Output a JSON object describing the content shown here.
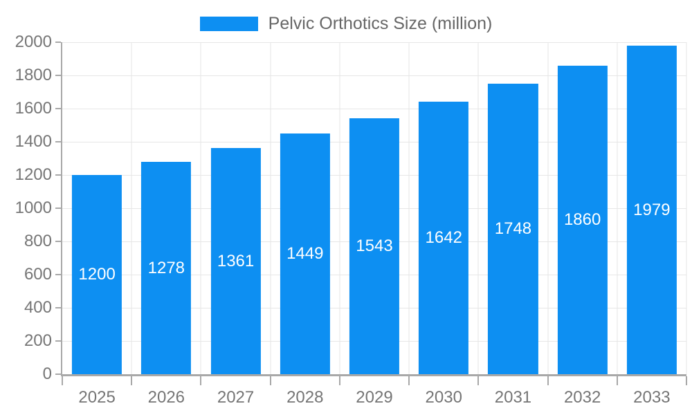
{
  "legend": {
    "label": "Pelvic Orthotics Size (million)"
  },
  "chart_data": {
    "type": "bar",
    "title": "Pelvic Orthotics Size (million)",
    "categories": [
      "2025",
      "2026",
      "2027",
      "2028",
      "2029",
      "2030",
      "2031",
      "2032",
      "2033"
    ],
    "series": [
      {
        "name": "Pelvic Orthotics Size (million)",
        "color": "#0d8ff2",
        "values": [
          1200,
          1278,
          1361,
          1449,
          1543,
          1642,
          1748,
          1860,
          1979
        ]
      }
    ],
    "xlabel": "",
    "ylabel": "",
    "ylim": [
      0,
      2000
    ],
    "ytick_step": 200,
    "ytick_labels": [
      "0",
      "200",
      "400",
      "600",
      "800",
      "1000",
      "1200",
      "1400",
      "1600",
      "1800",
      "2000"
    ],
    "grid": true,
    "legend_position": "top-center",
    "value_labels": "inside-center",
    "bar_width_fraction": 0.72,
    "colors": {
      "bar": "#0d8ff2",
      "axis_line": "#a8a8a8",
      "gridline": "#e6e6e6",
      "axis_text": "#757575",
      "legend_text": "#666666",
      "value_label_text": "#ffffff",
      "background": "#ffffff"
    }
  }
}
